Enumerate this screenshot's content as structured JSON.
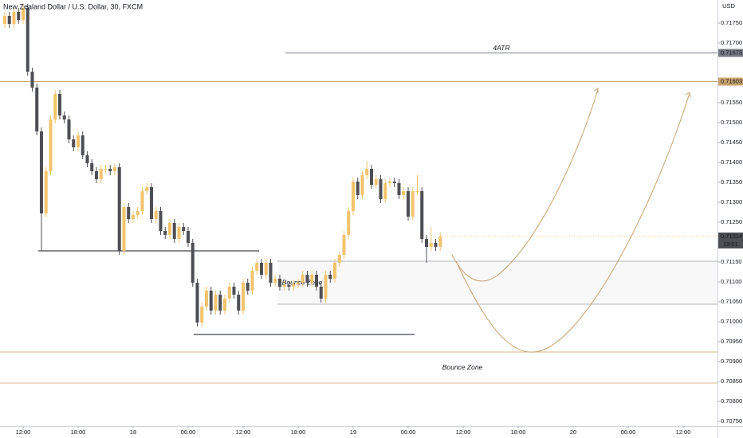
{
  "chart_data": {
    "type": "candlestick",
    "title": "New Zealand Dollar / U.S. Dollar, 30, FXCM",
    "currency": "USD",
    "countdown": "19:01",
    "up_color": "#f2c46d",
    "down_color": "#4e4f55",
    "xlim": [
      -2.52,
      75.74
    ],
    "ylim": [
      0.70738,
      0.71808
    ],
    "xticks": [
      {
        "value": 0,
        "label": "12:00"
      },
      {
        "value": 6,
        "label": "18:00"
      },
      {
        "value": 12,
        "label": "18"
      },
      {
        "value": 18,
        "label": "06:00"
      },
      {
        "value": 24,
        "label": "12:00"
      },
      {
        "value": 30,
        "label": "18:00"
      },
      {
        "value": 36,
        "label": "19"
      },
      {
        "value": 42,
        "label": "06:00"
      },
      {
        "value": 48,
        "label": "12:00"
      },
      {
        "value": 54,
        "label": "18:00"
      },
      {
        "value": 60,
        "label": "20"
      },
      {
        "value": 66,
        "label": "06:00"
      },
      {
        "value": 72,
        "label": "12:00"
      }
    ],
    "yticks": [
      {
        "value": 0.7175,
        "label": "0.71750"
      },
      {
        "value": 0.717,
        "label": "0.71700"
      },
      {
        "value": 0.7155,
        "label": "0.71550"
      },
      {
        "value": 0.715,
        "label": "0.71500"
      },
      {
        "value": 0.7145,
        "label": "0.71450"
      },
      {
        "value": 0.714,
        "label": "0.71400"
      },
      {
        "value": 0.7135,
        "label": "0.71350"
      },
      {
        "value": 0.713,
        "label": "0.71300"
      },
      {
        "value": 0.7125,
        "label": "0.71250"
      },
      {
        "value": 0.7115,
        "label": "0.71150"
      },
      {
        "value": 0.711,
        "label": "0.71100"
      },
      {
        "value": 0.7105,
        "label": "0.71050"
      },
      {
        "value": 0.71,
        "label": "0.71000"
      },
      {
        "value": 0.7095,
        "label": "0.70950"
      },
      {
        "value": 0.709,
        "label": "0.70900"
      },
      {
        "value": 0.7085,
        "label": "0.70850"
      },
      {
        "value": 0.708,
        "label": "0.70800"
      },
      {
        "value": 0.7075,
        "label": "0.70750"
      }
    ],
    "x": [
      -2,
      -1.5,
      -1,
      -0.5,
      0,
      0.5,
      1,
      1.5,
      2,
      2.5,
      3,
      3.5,
      4,
      4.5,
      5,
      5.5,
      6,
      6.5,
      7,
      7.5,
      8,
      8.5,
      9,
      9.5,
      10,
      10.5,
      11,
      11.5,
      12,
      12.5,
      13,
      13.5,
      14,
      14.5,
      15,
      15.5,
      16,
      16.5,
      17,
      17.5,
      18,
      18.5,
      19,
      19.5,
      20,
      20.5,
      21,
      21.5,
      22,
      22.5,
      23,
      23.5,
      24,
      24.5,
      25,
      25.5,
      26,
      26.5,
      27,
      27.5,
      28,
      28.5,
      29,
      29.5,
      30,
      30.5,
      31,
      31.5,
      32,
      32.5,
      33,
      33.5,
      34,
      34.5,
      35,
      35.5,
      36,
      36.5,
      37,
      37.5,
      38,
      38.5,
      39,
      39.5,
      40,
      40.5,
      41,
      41.5,
      42,
      42.5,
      43,
      43.5,
      44,
      44.5,
      45,
      45.5
    ],
    "open": [
      0.71748,
      0.71768,
      0.71748,
      0.71778,
      0.71758,
      0.71788,
      0.71628,
      0.71588,
      0.71478,
      0.71272,
      0.71378,
      0.71508,
      0.71572,
      0.71518,
      0.71508,
      0.71458,
      0.71438,
      0.71468,
      0.71418,
      0.71398,
      0.71378,
      0.71358,
      0.71384,
      0.71384,
      0.71378,
      0.71388,
      0.71178,
      0.71288,
      0.71258,
      0.71268,
      0.71278,
      0.71328,
      0.71338,
      0.71258,
      0.71278,
      0.71228,
      0.71218,
      0.71248,
      0.71208,
      0.71238,
      0.71228,
      0.71198,
      0.71098,
      0.70998,
      0.71038,
      0.71078,
      0.71028,
      0.71068,
      0.71028,
      0.71058,
      0.71088,
      0.71068,
      0.71028,
      0.71098,
      0.71078,
      0.71128,
      0.71148,
      0.71118,
      0.71148,
      0.71098,
      0.71108,
      0.71088,
      0.71092,
      0.71088,
      0.71094,
      0.71098,
      0.71118,
      0.71098,
      0.71118,
      0.71088,
      0.71058,
      0.71118,
      0.71108,
      0.71148,
      0.71168,
      0.71218,
      0.71278,
      0.71352,
      0.71318,
      0.71368,
      0.71384,
      0.71344,
      0.71358,
      0.71308,
      0.71348,
      0.71352,
      0.71348,
      0.71318,
      0.71328,
      0.71264,
      0.71328,
      0.71328,
      0.71208,
      0.71188,
      0.71198,
      0.71188
    ],
    "high": [
      0.71778,
      0.71778,
      0.71788,
      0.71788,
      0.71798,
      0.71798,
      0.71638,
      0.71598,
      0.71488,
      0.71388,
      0.71518,
      0.71582,
      0.71582,
      0.71528,
      0.71518,
      0.71468,
      0.71478,
      0.71478,
      0.71428,
      0.71408,
      0.71388,
      0.71394,
      0.71394,
      0.71394,
      0.71398,
      0.71398,
      0.71298,
      0.71298,
      0.71278,
      0.71288,
      0.71338,
      0.71348,
      0.71348,
      0.71288,
      0.71288,
      0.71238,
      0.71258,
      0.71258,
      0.71248,
      0.71248,
      0.71238,
      0.71208,
      0.71108,
      0.71048,
      0.71088,
      0.71088,
      0.71078,
      0.71078,
      0.71068,
      0.71098,
      0.71098,
      0.71078,
      0.71108,
      0.71108,
      0.71138,
      0.71158,
      0.71158,
      0.71158,
      0.71158,
      0.71118,
      0.71118,
      0.71102,
      0.71102,
      0.71104,
      0.71108,
      0.71128,
      0.71128,
      0.71128,
      0.71128,
      0.71098,
      0.71128,
      0.71128,
      0.71158,
      0.71178,
      0.71228,
      0.71288,
      0.71362,
      0.71362,
      0.71378,
      0.71404,
      0.71394,
      0.71368,
      0.71368,
      0.71358,
      0.71362,
      0.71362,
      0.71358,
      0.71338,
      0.71338,
      0.71338,
      0.71368,
      0.71338,
      0.71218,
      0.71238,
      0.71208,
      0.71224
    ],
    "low": [
      0.71738,
      0.71738,
      0.71738,
      0.71748,
      0.71748,
      0.71618,
      0.71578,
      0.71468,
      0.71178,
      0.71262,
      0.71368,
      0.71498,
      0.71508,
      0.71498,
      0.71448,
      0.71428,
      0.71428,
      0.71408,
      0.71388,
      0.71368,
      0.71348,
      0.71348,
      0.71374,
      0.71368,
      0.71368,
      0.71168,
      0.71168,
      0.71248,
      0.71248,
      0.71258,
      0.71268,
      0.71318,
      0.71248,
      0.71248,
      0.71218,
      0.71208,
      0.71208,
      0.71198,
      0.71198,
      0.71218,
      0.71188,
      0.71088,
      0.70988,
      0.70988,
      0.71028,
      0.71018,
      0.71018,
      0.71018,
      0.71018,
      0.71048,
      0.71058,
      0.71018,
      0.71018,
      0.71068,
      0.71068,
      0.71118,
      0.71108,
      0.71108,
      0.71088,
      0.71088,
      0.71078,
      0.71078,
      0.71078,
      0.71078,
      0.71084,
      0.71088,
      0.71088,
      0.71088,
      0.71078,
      0.71048,
      0.71048,
      0.71098,
      0.71098,
      0.71138,
      0.71158,
      0.71208,
      0.71268,
      0.71308,
      0.71308,
      0.71358,
      0.71334,
      0.71334,
      0.71298,
      0.71298,
      0.71338,
      0.71338,
      0.71308,
      0.71308,
      0.71254,
      0.71254,
      0.71318,
      0.71198,
      0.71148,
      0.71178,
      0.71178,
      0.71178
    ],
    "close": [
      0.71768,
      0.71748,
      0.71778,
      0.71758,
      0.71788,
      0.71628,
      0.71588,
      0.71478,
      0.71272,
      0.71378,
      0.71508,
      0.71572,
      0.71518,
      0.71508,
      0.71458,
      0.71438,
      0.71468,
      0.71418,
      0.71398,
      0.71378,
      0.71358,
      0.71384,
      0.71384,
      0.71378,
      0.71388,
      0.71178,
      0.71288,
      0.71258,
      0.71268,
      0.71278,
      0.71328,
      0.71338,
      0.71258,
      0.71278,
      0.71228,
      0.71218,
      0.71248,
      0.71208,
      0.71238,
      0.71228,
      0.71198,
      0.71098,
      0.70998,
      0.71038,
      0.71078,
      0.71028,
      0.71068,
      0.71028,
      0.71058,
      0.71088,
      0.71068,
      0.71028,
      0.71098,
      0.71078,
      0.71128,
      0.71148,
      0.71118,
      0.71148,
      0.71098,
      0.71108,
      0.71088,
      0.71092,
      0.71088,
      0.71094,
      0.71098,
      0.71118,
      0.71098,
      0.71118,
      0.71088,
      0.71058,
      0.71118,
      0.71108,
      0.71148,
      0.71168,
      0.71218,
      0.71278,
      0.71352,
      0.71318,
      0.71368,
      0.71384,
      0.71344,
      0.71358,
      0.71308,
      0.71348,
      0.71352,
      0.71348,
      0.71318,
      0.71328,
      0.71264,
      0.71328,
      0.71328,
      0.71208,
      0.71188,
      0.71198,
      0.71188,
      0.71214
    ],
    "hlines": [
      {
        "label": "4ATR",
        "value": 0.71675,
        "start": 28.6,
        "color": "#787b86",
        "tag": true
      },
      {
        "value": 0.71603,
        "color": "#c8a26e",
        "tag": true
      },
      {
        "value": 0.71178,
        "start": 1.65,
        "end": 25.74,
        "color": "#131722"
      },
      {
        "value": 0.70968,
        "start": 18.6,
        "end": 42.7,
        "color": "#131722"
      }
    ],
    "zones": [
      {
        "label": "Bounce Zone",
        "range": [
          0.71044,
          0.71152
        ],
        "start": 27.74,
        "color": "#b2b5be",
        "fill": "#f8f8f8"
      },
      {
        "label": "Bounce Zone",
        "range": [
          0.70846,
          0.70924
        ],
        "color": "#d9b98a"
      }
    ]
  }
}
